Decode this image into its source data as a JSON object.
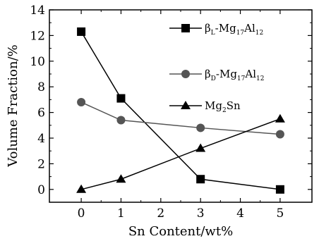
{
  "chart_data": {
    "type": "line",
    "xlabel": "Sn Content/wt%",
    "ylabel": "Volume Fraction/%",
    "xlim": [
      -0.8,
      5.8
    ],
    "ylim": [
      -1,
      14
    ],
    "xticks": [
      0,
      1,
      2,
      3,
      4,
      5
    ],
    "yticks": [
      0,
      2,
      4,
      6,
      8,
      10,
      12,
      14
    ],
    "grid": false,
    "legend_position": "top-right",
    "series": [
      {
        "name": "βL-Mg17Al12",
        "legend": {
          "greek": "β",
          "sub1": "L",
          "mid": "-Mg",
          "sub2": "17",
          "mid2": "Al",
          "sub3": "12"
        },
        "marker": "square",
        "color": "#000000",
        "x": [
          0,
          1,
          3,
          5
        ],
        "y": [
          12.3,
          7.1,
          0.8,
          0.0
        ]
      },
      {
        "name": "βD-Mg17Al12",
        "legend": {
          "greek": "β",
          "sub1": "D",
          "mid": "-Mg",
          "sub2": "17",
          "mid2": "Al",
          "sub3": "12"
        },
        "marker": "circle",
        "color": "#555555",
        "x": [
          0,
          1,
          3,
          5
        ],
        "y": [
          6.8,
          5.4,
          4.8,
          4.3
        ]
      },
      {
        "name": "Mg2Sn",
        "legend": {
          "greek": "",
          "sub1": "",
          "mid": "Mg",
          "sub2": "2",
          "mid2": "Sn",
          "sub3": ""
        },
        "marker": "triangle",
        "color": "#000000",
        "x": [
          0,
          1,
          3,
          5
        ],
        "y": [
          0.0,
          0.8,
          3.2,
          5.5
        ]
      }
    ]
  }
}
